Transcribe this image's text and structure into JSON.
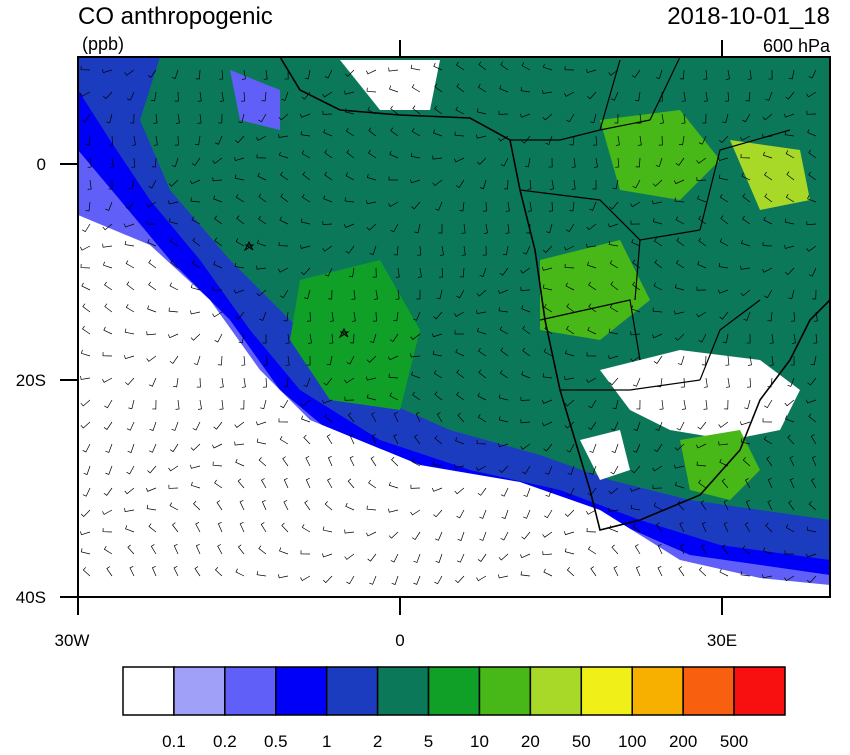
{
  "title": "CO anthropogenic",
  "units": "(ppb)",
  "date": "2018-10-01_18",
  "level": "600 hPa",
  "axes": {
    "y_labels": [
      "0",
      "20S",
      "40S"
    ],
    "x_labels": [
      "30W",
      "0",
      "30E"
    ]
  },
  "colorbar": {
    "colors": [
      "#ffffff",
      "#a0a0f8",
      "#6060f8",
      "#0000f8",
      "#1c3cc0",
      "#0c785a",
      "#10a028",
      "#48b818",
      "#a8d828",
      "#f0f018",
      "#f8b000",
      "#f86010",
      "#f81010"
    ],
    "labels": [
      "0.1",
      "0.2",
      "0.5",
      "1",
      "2",
      "5",
      "10",
      "20",
      "50",
      "100",
      "200",
      "500"
    ]
  }
}
